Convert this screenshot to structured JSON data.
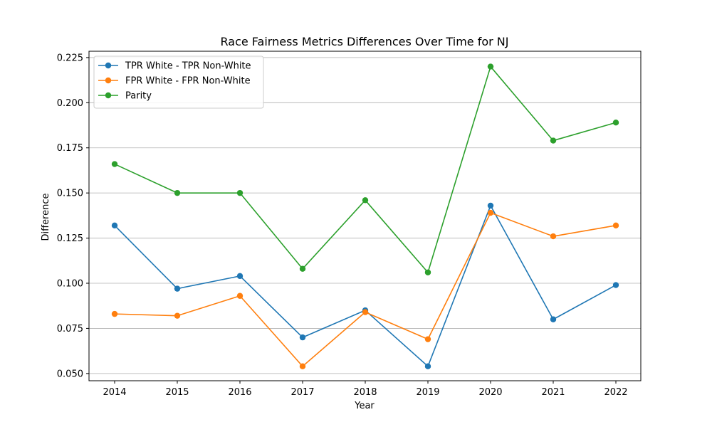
{
  "chart_data": {
    "type": "line",
    "title": "Race Fairness Metrics Differences Over Time for NJ",
    "xlabel": "Year",
    "ylabel": "Difference",
    "x": [
      2014,
      2015,
      2016,
      2017,
      2018,
      2019,
      2020,
      2021,
      2022
    ],
    "x_tick_labels": [
      "2014",
      "2015",
      "2016",
      "2017",
      "2018",
      "2019",
      "2020",
      "2021",
      "2022"
    ],
    "ylim": [
      0.046,
      0.2285
    ],
    "y_ticks": [
      0.05,
      0.075,
      0.1,
      0.125,
      0.15,
      0.175,
      0.2,
      0.225
    ],
    "y_tick_labels": [
      "0.050",
      "0.075",
      "0.100",
      "0.125",
      "0.150",
      "0.175",
      "0.200",
      "0.225"
    ],
    "grid": "horizontal",
    "legend_position": "top-left",
    "series": [
      {
        "name": "TPR White - TPR Non-White",
        "color": "#1f77b4",
        "values": [
          0.132,
          0.097,
          0.104,
          0.07,
          0.085,
          0.054,
          0.143,
          0.08,
          0.099
        ]
      },
      {
        "name": "FPR White - FPR Non-White",
        "color": "#ff7f0e",
        "values": [
          0.083,
          0.082,
          0.093,
          0.054,
          0.084,
          0.069,
          0.139,
          0.126,
          0.132
        ]
      },
      {
        "name": "Parity",
        "color": "#2ca02c",
        "values": [
          0.166,
          0.15,
          0.15,
          0.108,
          0.146,
          0.106,
          0.22,
          0.179,
          0.189
        ]
      }
    ]
  }
}
